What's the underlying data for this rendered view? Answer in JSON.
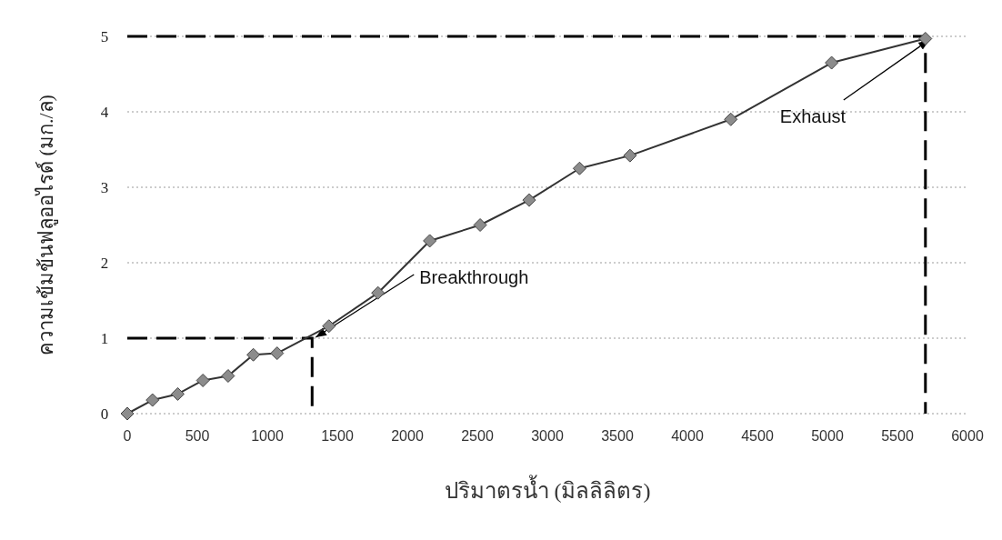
{
  "chart_data": {
    "type": "line",
    "xlabel": "ปริมาตรน้ำ (มิลลิลิตร)",
    "ylabel": "ความเข้มข้นฟลูออไรด์ (มก./ล)",
    "x": [
      0,
      180,
      360,
      540,
      720,
      900,
      1070,
      1440,
      1790,
      2160,
      2520,
      2870,
      3230,
      3590,
      4310,
      5030,
      5700
    ],
    "series": [
      {
        "color": "#8c8c8c",
        "values": [
          0,
          0.18,
          0.26,
          0.44,
          0.5,
          0.78,
          0.8,
          1.16,
          1.6,
          2.29,
          2.5,
          2.83,
          3.25,
          3.42,
          3.9,
          4.65,
          4.97
        ]
      }
    ],
    "marker": "diamond",
    "grid": "y",
    "xlim": [
      0,
      6000
    ],
    "xticks": [
      0,
      500,
      1000,
      1500,
      2000,
      2500,
      3000,
      3500,
      4000,
      4500,
      5000,
      5500,
      6000
    ],
    "ylim": [
      0,
      5
    ],
    "yticks": [
      0,
      1,
      2,
      3,
      4,
      5
    ],
    "annotations": [
      {
        "text": "Breakthrough",
        "x": 1320,
        "y": 1
      },
      {
        "text": "Exhaust",
        "x": 5700,
        "y": 5
      }
    ]
  }
}
